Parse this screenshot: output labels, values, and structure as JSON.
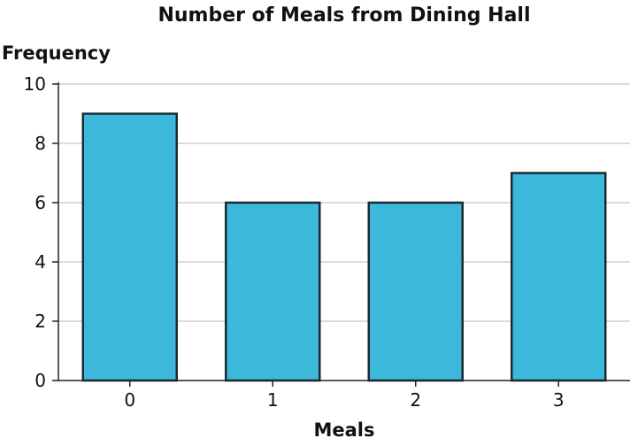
{
  "chart_data": {
    "type": "bar",
    "title": "Number of Meals from Dining Hall",
    "xlabel": "Meals",
    "ylabel": "Frequency",
    "categories": [
      "0",
      "1",
      "2",
      "3"
    ],
    "values": [
      9,
      6,
      6,
      7
    ],
    "ylim": [
      0,
      10
    ],
    "yticks": [
      0,
      2,
      4,
      6,
      8,
      10
    ],
    "grid": true,
    "bar_color": "#3bb8da",
    "bar_edge_color": "#1a2a33"
  }
}
